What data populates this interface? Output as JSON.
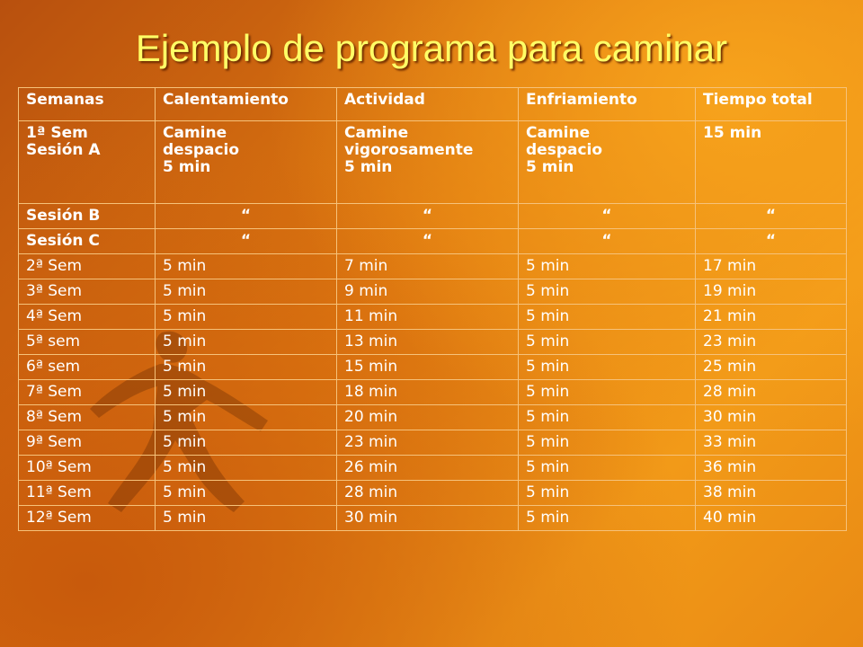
{
  "title": "Ejemplo de programa para caminar",
  "headers": [
    "Semanas",
    "Calentamiento",
    "Actividad",
    "Enfriamiento",
    "Tiempo total"
  ],
  "first_row": {
    "week_line1": "1ª  Sem",
    "week_line2": "Sesión A",
    "warmup": [
      "Camine",
      "despacio",
      "5 min"
    ],
    "activity": [
      "Camine",
      "vigorosamente",
      "5 min"
    ],
    "cooldown": [
      "Camine",
      "despacio",
      "5 min"
    ],
    "total": "15 min"
  },
  "session_b": {
    "label": "Sesión B",
    "ditto": "“"
  },
  "session_c": {
    "label": "Sesión C",
    "ditto": "“"
  },
  "rows": [
    {
      "week": "2ª Sem",
      "warmup": "5 min",
      "activity": "7 min",
      "cooldown": "5 min",
      "total": "17 min"
    },
    {
      "week": "3ª Sem",
      "warmup": "5 min",
      "activity": "9 min",
      "cooldown": "5 min",
      "total": "19 min"
    },
    {
      "week": "4ª Sem",
      "warmup": "5 min",
      "activity": "11 min",
      "cooldown": "5 min",
      "total": "21 min"
    },
    {
      "week": "5ª sem",
      "warmup": "5 min",
      "activity": "13 min",
      "cooldown": "5 min",
      "total": "23 min"
    },
    {
      "week": "6ª sem",
      "warmup": "5 min",
      "activity": "15 min",
      "cooldown": "5 min",
      "total": "25 min"
    },
    {
      "week": "7ª Sem",
      "warmup": "5 min",
      "activity": "18 min",
      "cooldown": "5 min",
      "total": "28 min"
    },
    {
      "week": "8ª Sem",
      "warmup": "5 min",
      "activity": "20 min",
      "cooldown": "5 min",
      "total": "30 min"
    },
    {
      "week": "9ª Sem",
      "warmup": "5 min",
      "activity": "23 min",
      "cooldown": "5 min",
      "total": "33 min"
    },
    {
      "week": "10ª Sem",
      "warmup": "5 min",
      "activity": "26 min",
      "cooldown": "5 min",
      "total": "36 min"
    },
    {
      "week": "11ª Sem",
      "warmup": "5 min",
      "activity": "28 min",
      "cooldown": "5 min",
      "total": "38 min"
    },
    {
      "week": "12ª Sem",
      "warmup": "5 min",
      "activity": "30 min",
      "cooldown": "5 min",
      "total": "40 min"
    }
  ],
  "colors": {
    "title": "#ffff66",
    "text": "#ffffff",
    "grid": "#f6c27a"
  }
}
